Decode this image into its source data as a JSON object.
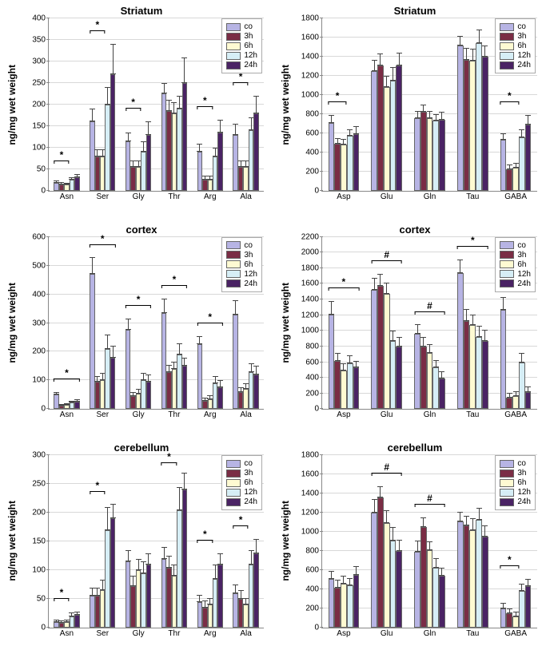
{
  "ylabel": "ng/mg wet weight",
  "series": [
    {
      "key": "co",
      "label": "co",
      "color": "#b7b4e4"
    },
    {
      "key": "3h",
      "label": "3h",
      "color": "#7a2d45"
    },
    {
      "key": "6h",
      "label": "6h",
      "color": "#fefad2"
    },
    {
      "key": "12h",
      "label": "12h",
      "color": "#d6eef6"
    },
    {
      "key": "24h",
      "label": "24h",
      "color": "#4a2364"
    }
  ],
  "panels": [
    {
      "title": "Striatum",
      "ymax": 400,
      "ystep": 50,
      "categories": [
        "Asn",
        "Ser",
        "Gly",
        "Thr",
        "Arg",
        "Ala"
      ],
      "data": {
        "Asn": {
          "v": [
            18,
            15,
            14,
            25,
            30
          ],
          "e": [
            5,
            4,
            4,
            6,
            8
          ],
          "sig": "*",
          "sigto": 2
        },
        "Ser": {
          "v": [
            160,
            80,
            80,
            200,
            270
          ],
          "e": [
            30,
            15,
            15,
            40,
            70
          ],
          "sig": "*",
          "sigto": 2
        },
        "Gly": {
          "v": [
            115,
            55,
            55,
            90,
            130
          ],
          "e": [
            20,
            15,
            15,
            25,
            30
          ],
          "sig": "*",
          "sigto": 2
        },
        "Thr": {
          "v": [
            225,
            185,
            180,
            190,
            250
          ],
          "e": [
            25,
            25,
            25,
            30,
            60
          ]
        },
        "Arg": {
          "v": [
            90,
            25,
            25,
            80,
            135
          ],
          "e": [
            18,
            10,
            10,
            20,
            30
          ],
          "sig": "*",
          "sigto": 2
        },
        "Ala": {
          "v": [
            130,
            55,
            55,
            140,
            180
          ],
          "e": [
            25,
            15,
            15,
            30,
            40
          ],
          "sig": "*",
          "sigto": 2
        }
      }
    },
    {
      "title": "Striatum",
      "ymax": 1800,
      "ystep": 200,
      "categories": [
        "Asp",
        "Glu",
        "Gln",
        "Tau",
        "GABA"
      ],
      "data": {
        "Asp": {
          "v": [
            710,
            490,
            480,
            570,
            590
          ],
          "e": [
            80,
            60,
            60,
            70,
            80
          ],
          "sig": "*",
          "sigto": 2
        },
        "Glu": {
          "v": [
            1250,
            1310,
            1080,
            1150,
            1310
          ],
          "e": [
            120,
            120,
            120,
            140,
            130
          ]
        },
        "Gln": {
          "v": [
            760,
            820,
            760,
            730,
            740
          ],
          "e": [
            70,
            80,
            70,
            70,
            80
          ]
        },
        "Tau": {
          "v": [
            1520,
            1370,
            1360,
            1540,
            1400
          ],
          "e": [
            100,
            120,
            120,
            140,
            120
          ]
        },
        "GABA": {
          "v": [
            530,
            220,
            240,
            560,
            690
          ],
          "e": [
            70,
            50,
            50,
            80,
            100
          ],
          "sig": "*",
          "sigto": 2
        }
      }
    },
    {
      "title": "cortex",
      "ymax": 600,
      "ystep": 100,
      "categories": [
        "Asn",
        "Ser",
        "Gly",
        "Thr",
        "Arg",
        "Ala"
      ],
      "data": {
        "Asn": {
          "v": [
            50,
            12,
            15,
            22,
            25
          ],
          "e": [
            10,
            5,
            5,
            6,
            8
          ],
          "sig": "*",
          "sigto": 4
        },
        "Ser": {
          "v": [
            470,
            95,
            100,
            210,
            180
          ],
          "e": [
            60,
            20,
            25,
            50,
            40
          ],
          "sig": "*",
          "sigto": 4
        },
        "Gly": {
          "v": [
            275,
            45,
            55,
            100,
            95
          ],
          "e": [
            40,
            15,
            15,
            25,
            25
          ],
          "sig": "*",
          "sigto": 4
        },
        "Thr": {
          "v": [
            335,
            130,
            140,
            190,
            150
          ],
          "e": [
            50,
            25,
            25,
            40,
            30
          ],
          "sig": "*",
          "sigto": 4
        },
        "Arg": {
          "v": [
            225,
            30,
            35,
            90,
            75
          ],
          "e": [
            30,
            10,
            12,
            25,
            25
          ],
          "sig": "*",
          "sigto": 4
        },
        "Ala": {
          "v": [
            330,
            60,
            70,
            130,
            120
          ],
          "e": [
            50,
            15,
            20,
            30,
            30
          ],
          "sig": "*",
          "sigto": 4
        }
      }
    },
    {
      "title": "cortex",
      "ymax": 2200,
      "ystep": 200,
      "categories": [
        "Asp",
        "Glu",
        "Gln",
        "Tau",
        "GABA"
      ],
      "data": {
        "Asp": {
          "v": [
            1210,
            620,
            490,
            590,
            530
          ],
          "e": [
            170,
            100,
            90,
            100,
            90
          ],
          "sig": "*",
          "sigto": 4
        },
        "Glu": {
          "v": [
            1520,
            1570,
            1470,
            870,
            800
          ],
          "e": [
            160,
            160,
            150,
            130,
            120
          ],
          "sig": "#",
          "sigto": 4
        },
        "Gln": {
          "v": [
            960,
            800,
            720,
            530,
            390
          ],
          "e": [
            120,
            120,
            110,
            100,
            90
          ],
          "sig": "#",
          "sigto": 4
        },
        "Tau": {
          "v": [
            1740,
            1130,
            1070,
            920,
            870
          ],
          "e": [
            170,
            150,
            140,
            140,
            140
          ],
          "sig": "*",
          "sigto": 4
        },
        "GABA": {
          "v": [
            1270,
            150,
            170,
            600,
            220
          ],
          "e": [
            160,
            60,
            60,
            120,
            70
          ],
          "sig": "*",
          "sigto": 4
        }
      }
    },
    {
      "title": "cerebellum",
      "ymax": 300,
      "ystep": 50,
      "categories": [
        "Asn",
        "Ser",
        "Gly",
        "Thr",
        "Arg",
        "Ala"
      ],
      "data": {
        "Asn": {
          "v": [
            10,
            8,
            10,
            20,
            22
          ],
          "e": [
            4,
            4,
            4,
            6,
            6
          ],
          "sig": "*",
          "sigto": 2
        },
        "Ser": {
          "v": [
            55,
            55,
            65,
            170,
            190
          ],
          "e": [
            15,
            15,
            18,
            40,
            25
          ],
          "sig": "*",
          "sigto": 2
        },
        "Gly": {
          "v": [
            115,
            72,
            100,
            95,
            110
          ],
          "e": [
            20,
            18,
            20,
            20,
            20
          ]
        },
        "Thr": {
          "v": [
            120,
            105,
            90,
            205,
            240
          ],
          "e": [
            20,
            20,
            20,
            40,
            30
          ],
          "sig": "*",
          "sigto": 2
        },
        "Arg": {
          "v": [
            45,
            35,
            40,
            85,
            110
          ],
          "e": [
            12,
            12,
            12,
            25,
            20
          ],
          "sig": "*",
          "sigto": 2
        },
        "Ala": {
          "v": [
            60,
            50,
            40,
            110,
            130
          ],
          "e": [
            15,
            15,
            12,
            25,
            25
          ],
          "sig": "*",
          "sigto": 2
        }
      }
    },
    {
      "title": "cerebellum",
      "ymax": 1800,
      "ystep": 200,
      "categories": [
        "Asp",
        "Glu",
        "Gln",
        "Tau",
        "GABA"
      ],
      "data": {
        "Asp": {
          "v": [
            510,
            420,
            460,
            440,
            550
          ],
          "e": [
            80,
            80,
            80,
            80,
            90
          ]
        },
        "Glu": {
          "v": [
            1200,
            1360,
            1090,
            910,
            800
          ],
          "e": [
            140,
            120,
            140,
            140,
            120
          ],
          "sig": "#",
          "sigto": 4
        },
        "Gln": {
          "v": [
            790,
            1050,
            810,
            630,
            540
          ],
          "e": [
            120,
            100,
            90,
            100,
            90
          ],
          "sig": "#",
          "sigto": 4
        },
        "Tau": {
          "v": [
            1110,
            1070,
            1020,
            1130,
            950
          ],
          "e": [
            100,
            100,
            120,
            120,
            120
          ]
        },
        "GABA": {
          "v": [
            200,
            150,
            120,
            380,
            430
          ],
          "e": [
            60,
            50,
            50,
            80,
            80
          ],
          "sig": "*",
          "sigto": 2
        }
      }
    }
  ]
}
